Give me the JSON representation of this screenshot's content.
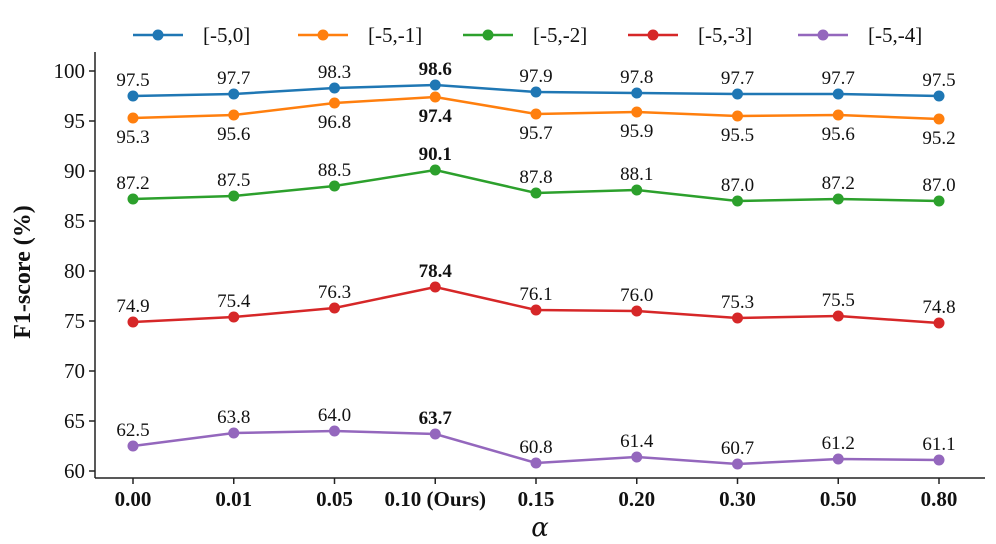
{
  "chart_data": {
    "type": "line",
    "title": "",
    "xlabel": "α",
    "ylabel": "F1-score (%)",
    "categories": [
      "0.00",
      "0.01",
      "0.05",
      "0.10 (Ours)",
      "0.15",
      "0.20",
      "0.30",
      "0.50",
      "0.80"
    ],
    "ylim": [
      59,
      101
    ],
    "yticks": [
      60,
      65,
      70,
      75,
      80,
      85,
      90,
      95,
      100
    ],
    "grid": false,
    "legend_position": "top",
    "series": [
      {
        "name": "[-5,0]",
        "color": "#1f77b4",
        "values": [
          97.5,
          97.7,
          98.3,
          98.6,
          97.9,
          97.8,
          97.7,
          97.7,
          97.5
        ],
        "labels": [
          "97.5",
          "97.7",
          "98.3",
          "98.6",
          "97.9",
          "97.8",
          "97.7",
          "97.7",
          "97.5"
        ],
        "label_side": "above"
      },
      {
        "name": "[-5,-1]",
        "color": "#ff7f0e",
        "values": [
          95.3,
          95.6,
          96.8,
          97.4,
          95.7,
          95.9,
          95.5,
          95.6,
          95.2
        ],
        "labels": [
          "95.3",
          "95.6",
          "96.8",
          "97.4",
          "95.7",
          "95.9",
          "95.5",
          "95.6",
          "95.2"
        ],
        "label_side": "below"
      },
      {
        "name": "[-5,-2]",
        "color": "#2ca02c",
        "values": [
          87.2,
          87.5,
          88.5,
          90.1,
          87.8,
          88.1,
          87.0,
          87.2,
          87.0
        ],
        "labels": [
          "87.2",
          "87.5",
          "88.5",
          "90.1",
          "87.8",
          "88.1",
          "87.0",
          "87.2",
          "87.0"
        ],
        "label_side": "above"
      },
      {
        "name": "[-5,-3]",
        "color": "#d62728",
        "values": [
          74.9,
          75.4,
          76.3,
          78.4,
          76.1,
          76.0,
          75.3,
          75.5,
          74.8
        ],
        "labels": [
          "74.9",
          "75.4",
          "76.3",
          "78.4",
          "76.1",
          "76.0",
          "75.3",
          "75.5",
          "74.8"
        ],
        "label_side": "above"
      },
      {
        "name": "[-5,-4]",
        "color": "#9467bd",
        "values": [
          62.5,
          63.8,
          64.0,
          63.7,
          60.8,
          61.4,
          60.7,
          61.2,
          61.1
        ],
        "labels": [
          "62.5",
          "63.8",
          "64.0",
          "63.7",
          "60.8",
          "61.4",
          "60.7",
          "61.2",
          "61.1"
        ],
        "label_side": "above"
      }
    ],
    "highlight_index": 3
  }
}
